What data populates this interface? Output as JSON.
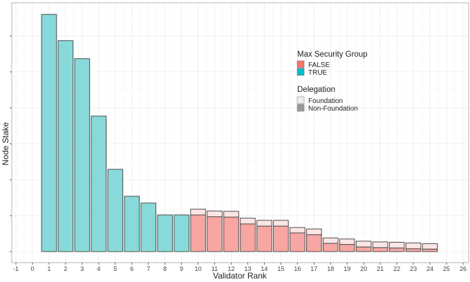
{
  "chart_data": {
    "type": "bar",
    "stacked": true,
    "title": "",
    "xlabel": "Validator Rank",
    "ylabel": "Node Stake",
    "xlim": [
      -1,
      26
    ],
    "x_ticks": [
      -1,
      0,
      1,
      2,
      3,
      4,
      5,
      6,
      7,
      8,
      9,
      10,
      11,
      12,
      13,
      14,
      15,
      16,
      17,
      18,
      19,
      20,
      21,
      22,
      23,
      24,
      25,
      26
    ],
    "ylim": [
      0,
      7
    ],
    "y_tick_labels_shown": false,
    "grid": true,
    "legend_position": "top-right",
    "legends": [
      {
        "title": "Max Security Group",
        "entries": [
          {
            "label": "FALSE",
            "color": "#F8766D"
          },
          {
            "label": "TRUE",
            "color": "#00BFC4"
          }
        ]
      },
      {
        "title": "Delegation",
        "entries": [
          {
            "label": "Foundation",
            "color": "#eeeeee"
          },
          {
            "label": "Non-Foundation",
            "color": "#999999"
          }
        ]
      }
    ],
    "colors": {
      "TRUE": "#88d9d9",
      "FALSE_non_foundation": "#f7a6a3",
      "FALSE_foundation": "#fde5e5",
      "outline": "#4d4d4d"
    },
    "series": [
      {
        "rank": 1,
        "max_security_group": true,
        "non_foundation": 6.6,
        "foundation": 0
      },
      {
        "rank": 2,
        "max_security_group": true,
        "non_foundation": 5.87,
        "foundation": 0
      },
      {
        "rank": 3,
        "max_security_group": true,
        "non_foundation": 5.37,
        "foundation": 0
      },
      {
        "rank": 4,
        "max_security_group": true,
        "non_foundation": 3.77,
        "foundation": 0
      },
      {
        "rank": 5,
        "max_security_group": true,
        "non_foundation": 2.29,
        "foundation": 0
      },
      {
        "rank": 6,
        "max_security_group": true,
        "non_foundation": 1.54,
        "foundation": 0
      },
      {
        "rank": 7,
        "max_security_group": true,
        "non_foundation": 1.35,
        "foundation": 0
      },
      {
        "rank": 8,
        "max_security_group": true,
        "non_foundation": 1.02,
        "foundation": 0
      },
      {
        "rank": 9,
        "max_security_group": true,
        "non_foundation": 1.02,
        "foundation": 0
      },
      {
        "rank": 10,
        "max_security_group": false,
        "non_foundation": 1.02,
        "foundation": 0.16
      },
      {
        "rank": 11,
        "max_security_group": false,
        "non_foundation": 0.97,
        "foundation": 0.16
      },
      {
        "rank": 12,
        "max_security_group": false,
        "non_foundation": 0.96,
        "foundation": 0.16
      },
      {
        "rank": 13,
        "max_security_group": false,
        "non_foundation": 0.77,
        "foundation": 0.16
      },
      {
        "rank": 14,
        "max_security_group": false,
        "non_foundation": 0.71,
        "foundation": 0.16
      },
      {
        "rank": 15,
        "max_security_group": false,
        "non_foundation": 0.71,
        "foundation": 0.16
      },
      {
        "rank": 16,
        "max_security_group": false,
        "non_foundation": 0.52,
        "foundation": 0.15
      },
      {
        "rank": 17,
        "max_security_group": false,
        "non_foundation": 0.47,
        "foundation": 0.16
      },
      {
        "rank": 18,
        "max_security_group": false,
        "non_foundation": 0.23,
        "foundation": 0.15
      },
      {
        "rank": 19,
        "max_security_group": false,
        "non_foundation": 0.2,
        "foundation": 0.15
      },
      {
        "rank": 20,
        "max_security_group": false,
        "non_foundation": 0.13,
        "foundation": 0.16
      },
      {
        "rank": 21,
        "max_security_group": false,
        "non_foundation": 0.11,
        "foundation": 0.16
      },
      {
        "rank": 22,
        "max_security_group": false,
        "non_foundation": 0.1,
        "foundation": 0.16
      },
      {
        "rank": 23,
        "max_security_group": false,
        "non_foundation": 0.08,
        "foundation": 0.16
      },
      {
        "rank": 24,
        "max_security_group": false,
        "non_foundation": 0.07,
        "foundation": 0.15
      }
    ]
  }
}
